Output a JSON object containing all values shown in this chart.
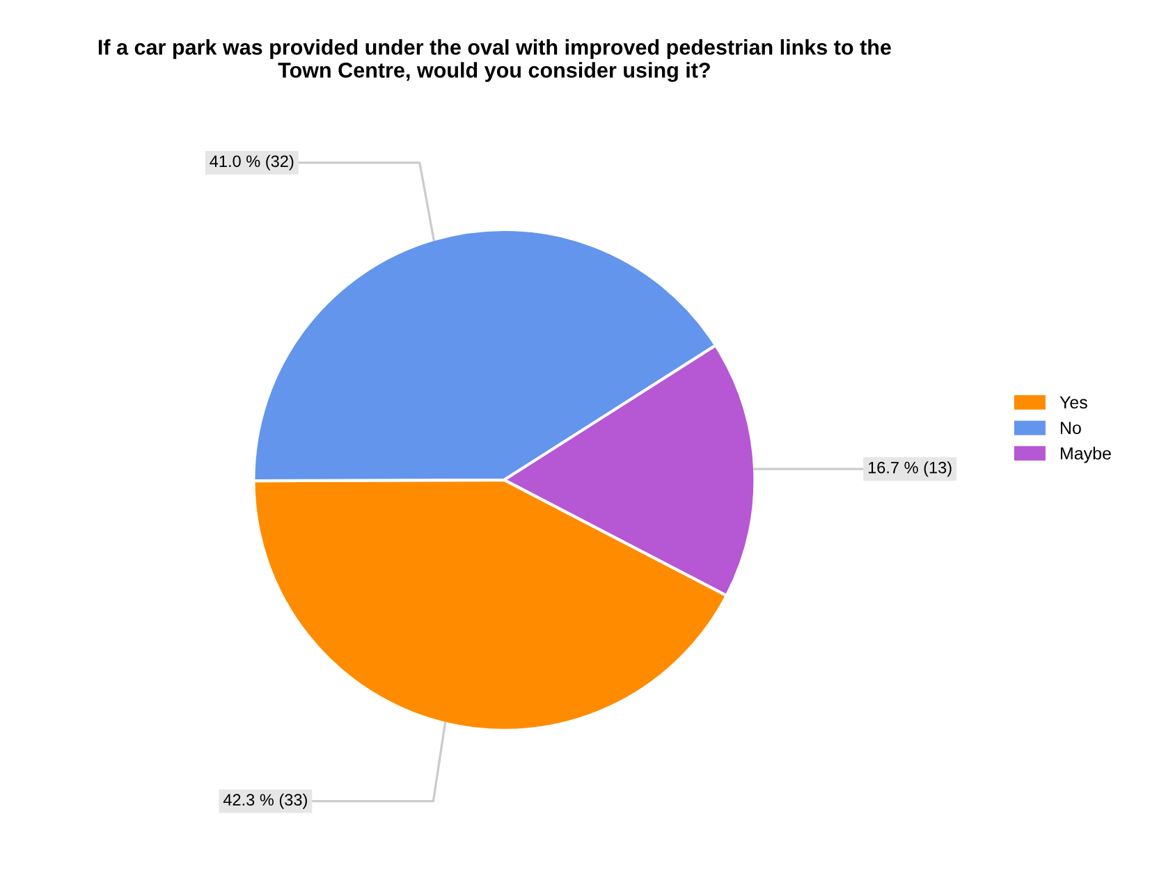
{
  "chart_data": {
    "type": "pie",
    "title": "If a car park was provided under the oval with improved pedestrian links to the\nTown Centre, would you consider using it?",
    "categories": [
      "Yes",
      "No",
      "Maybe"
    ],
    "values": [
      33,
      32,
      13
    ],
    "value_labels": [
      "42.3 % (33)",
      "41.0 % (32)",
      "16.7 % (13)"
    ],
    "colors": [
      "#ff8c00",
      "#6495ed",
      "#b657d4"
    ],
    "legend": "right"
  }
}
